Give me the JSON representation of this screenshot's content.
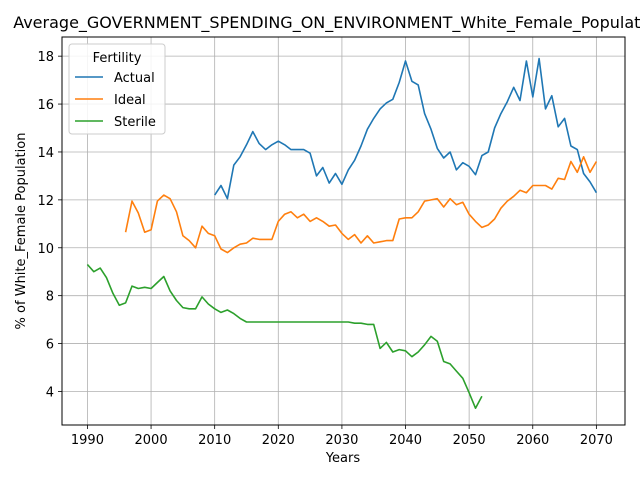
{
  "chart_data": {
    "type": "line",
    "title": "Average_GOVERNMENT_SPENDING_ON_ENVIRONMENT_White_Female_Population",
    "xlabel": "Years",
    "ylabel": "% of White_Female Population",
    "xlim": [
      1986,
      2074.5
    ],
    "ylim": [
      2.6,
      18.8
    ],
    "xticks": [
      1990,
      2000,
      2010,
      2020,
      2030,
      2040,
      2050,
      2060,
      2070
    ],
    "yticks": [
      4,
      6,
      8,
      10,
      12,
      14,
      16,
      18
    ],
    "grid": true,
    "legend": {
      "title": "Fertility",
      "position": "top-left"
    },
    "series": [
      {
        "name": "Actual",
        "color": "#1f77b4",
        "x": [
          2010,
          2011,
          2012,
          2013,
          2014,
          2015,
          2016,
          2017,
          2018,
          2019,
          2020,
          2021,
          2022,
          2023,
          2024,
          2025,
          2026,
          2027,
          2028,
          2029,
          2030,
          2031,
          2032,
          2033,
          2034,
          2035,
          2036,
          2037,
          2038,
          2039,
          2040,
          2041,
          2042,
          2043,
          2044,
          2045,
          2046,
          2047,
          2048,
          2049,
          2050,
          2051,
          2052,
          2053,
          2054,
          2055,
          2056,
          2057,
          2058,
          2059,
          2060,
          2061,
          2062,
          2063,
          2064,
          2065,
          2066,
          2067,
          2068,
          2069,
          2070
        ],
        "y": [
          12.2,
          12.6,
          12.05,
          13.45,
          13.8,
          14.3,
          14.85,
          14.35,
          14.1,
          14.3,
          14.45,
          14.3,
          14.1,
          14.1,
          14.1,
          13.95,
          13.0,
          13.35,
          12.7,
          13.1,
          12.65,
          13.25,
          13.65,
          14.25,
          14.95,
          15.4,
          15.8,
          16.05,
          16.2,
          16.9,
          17.8,
          16.95,
          16.8,
          15.6,
          14.95,
          14.15,
          13.75,
          14.0,
          13.25,
          13.55,
          13.4,
          13.05,
          13.85,
          14.0,
          15.0,
          15.6,
          16.1,
          16.7,
          16.15,
          17.8,
          16.3,
          17.9,
          15.8,
          16.35,
          15.05,
          15.4,
          14.25,
          14.1,
          13.1,
          12.75,
          12.3
        ]
      },
      {
        "name": "Ideal",
        "color": "#ff7f0e",
        "x": [
          1996,
          1997,
          1998,
          1999,
          2000,
          2001,
          2002,
          2003,
          2004,
          2005,
          2006,
          2007,
          2008,
          2009,
          2010,
          2011,
          2012,
          2013,
          2014,
          2015,
          2016,
          2017,
          2018,
          2019,
          2020,
          2021,
          2022,
          2023,
          2024,
          2025,
          2026,
          2027,
          2028,
          2029,
          2030,
          2031,
          2032,
          2033,
          2034,
          2035,
          2036,
          2037,
          2038,
          2039,
          2040,
          2041,
          2042,
          2043,
          2044,
          2045,
          2046,
          2047,
          2048,
          2049,
          2050,
          2051,
          2052,
          2053,
          2054,
          2055,
          2056,
          2057,
          2058,
          2059,
          2060,
          2061,
          2062,
          2063,
          2064,
          2065,
          2066,
          2067,
          2068,
          2069,
          2070
        ],
        "y": [
          10.65,
          11.95,
          11.45,
          10.65,
          10.75,
          11.95,
          12.2,
          12.05,
          11.5,
          10.5,
          10.3,
          10.0,
          10.9,
          10.6,
          10.5,
          9.95,
          9.8,
          10.0,
          10.15,
          10.2,
          10.4,
          10.35,
          10.35,
          10.35,
          11.1,
          11.4,
          11.5,
          11.25,
          11.4,
          11.1,
          11.25,
          11.1,
          10.9,
          10.95,
          10.6,
          10.35,
          10.55,
          10.2,
          10.5,
          10.2,
          10.25,
          10.3,
          10.3,
          11.2,
          11.25,
          11.25,
          11.5,
          11.95,
          12.0,
          12.05,
          11.7,
          12.05,
          11.8,
          11.9,
          11.4,
          11.1,
          10.85,
          10.95,
          11.2,
          11.65,
          11.95,
          12.15,
          12.4,
          12.3,
          12.6,
          12.6,
          12.6,
          12.45,
          12.9,
          12.85,
          13.6,
          13.15,
          13.8,
          13.15,
          13.6
        ]
      },
      {
        "name": "Sterile",
        "color": "#2ca02c",
        "x": [
          1990,
          1991,
          1992,
          1993,
          1994,
          1995,
          1996,
          1997,
          1998,
          1999,
          2000,
          2001,
          2002,
          2003,
          2004,
          2005,
          2006,
          2007,
          2008,
          2009,
          2010,
          2011,
          2012,
          2013,
          2014,
          2015,
          2016,
          2017,
          2018,
          2019,
          2020,
          2021,
          2022,
          2023,
          2024,
          2025,
          2026,
          2027,
          2028,
          2029,
          2030,
          2031,
          2032,
          2033,
          2034,
          2035,
          2036,
          2037,
          2038,
          2039,
          2040,
          2041,
          2042,
          2043,
          2044,
          2045,
          2046,
          2047,
          2048,
          2049,
          2050,
          2051,
          2052
        ],
        "y": [
          9.3,
          9.0,
          9.15,
          8.75,
          8.1,
          7.6,
          7.7,
          8.4,
          8.3,
          8.35,
          8.3,
          8.55,
          8.8,
          8.2,
          7.8,
          7.5,
          7.45,
          7.45,
          7.95,
          7.65,
          7.45,
          7.3,
          7.4,
          7.25,
          7.05,
          6.9,
          6.9,
          6.9,
          6.9,
          6.9,
          6.9,
          6.9,
          6.9,
          6.9,
          6.9,
          6.9,
          6.9,
          6.9,
          6.9,
          6.9,
          6.9,
          6.9,
          6.85,
          6.85,
          6.8,
          6.8,
          5.8,
          6.05,
          5.65,
          5.75,
          5.7,
          5.45,
          5.65,
          5.95,
          6.3,
          6.1,
          5.25,
          5.15,
          4.85,
          4.55,
          3.95,
          3.3,
          3.8
        ]
      }
    ]
  }
}
